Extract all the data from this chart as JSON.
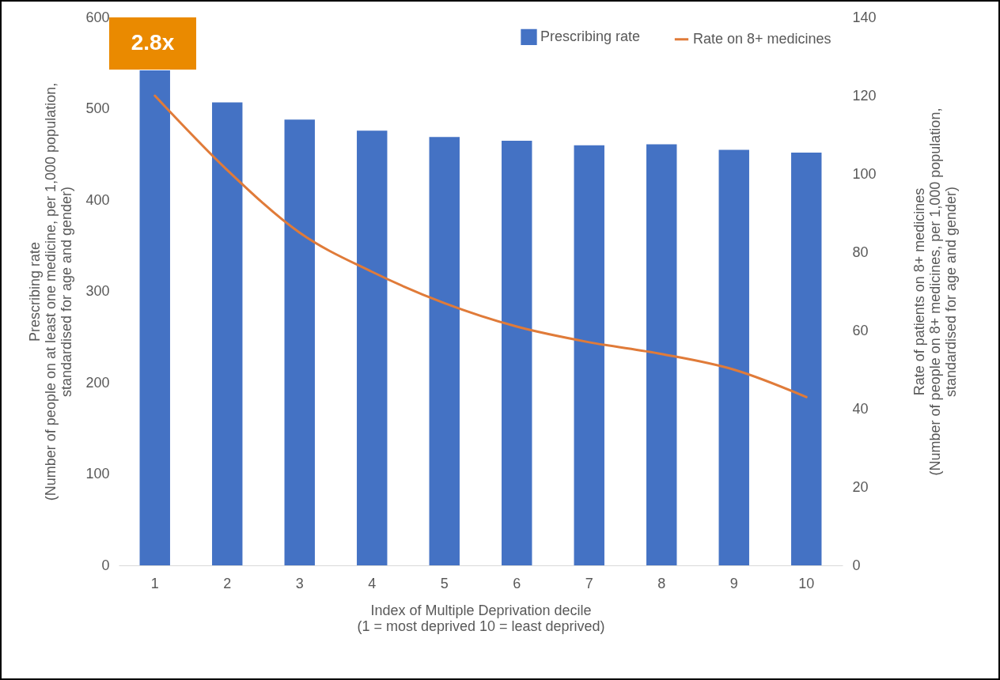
{
  "chart_data": {
    "type": "bar",
    "categories": [
      "1",
      "2",
      "3",
      "4",
      "5",
      "6",
      "7",
      "8",
      "9",
      "10"
    ],
    "series": [
      {
        "name": "Prescribing rate",
        "color": "#4472c4",
        "values": [
          542,
          507,
          488,
          476,
          469,
          465,
          460,
          461,
          455,
          452
        ]
      },
      {
        "name": "Rate on 8+ medicines",
        "type": "line",
        "axis": "y2",
        "color": "#e07b39",
        "values": [
          120,
          101,
          85,
          75,
          67,
          61,
          57,
          54,
          50,
          43
        ]
      }
    ],
    "ylim": [
      0,
      600
    ],
    "yticks": [
      0,
      100,
      200,
      300,
      400,
      500,
      600
    ],
    "y2lim": [
      0,
      140
    ],
    "y2ticks": [
      0,
      20,
      40,
      60,
      80,
      100,
      120,
      140
    ],
    "xlabel": "Index of Multiple Deprivation decile\n(1 = most deprived 10 = least deprived)",
    "ylabel": "Prescribing rate\n(Number of people on at least one medicine, per 1,000 population,\nstandardised for age and gender)",
    "y2label": "Rate of patients on 8+ medicines\n(Number of people on 8+ medicines, per 1,000 population,\nstandardised for age and gender)",
    "legend": "top right",
    "grid": false,
    "annotations": [
      "2.8x"
    ]
  }
}
